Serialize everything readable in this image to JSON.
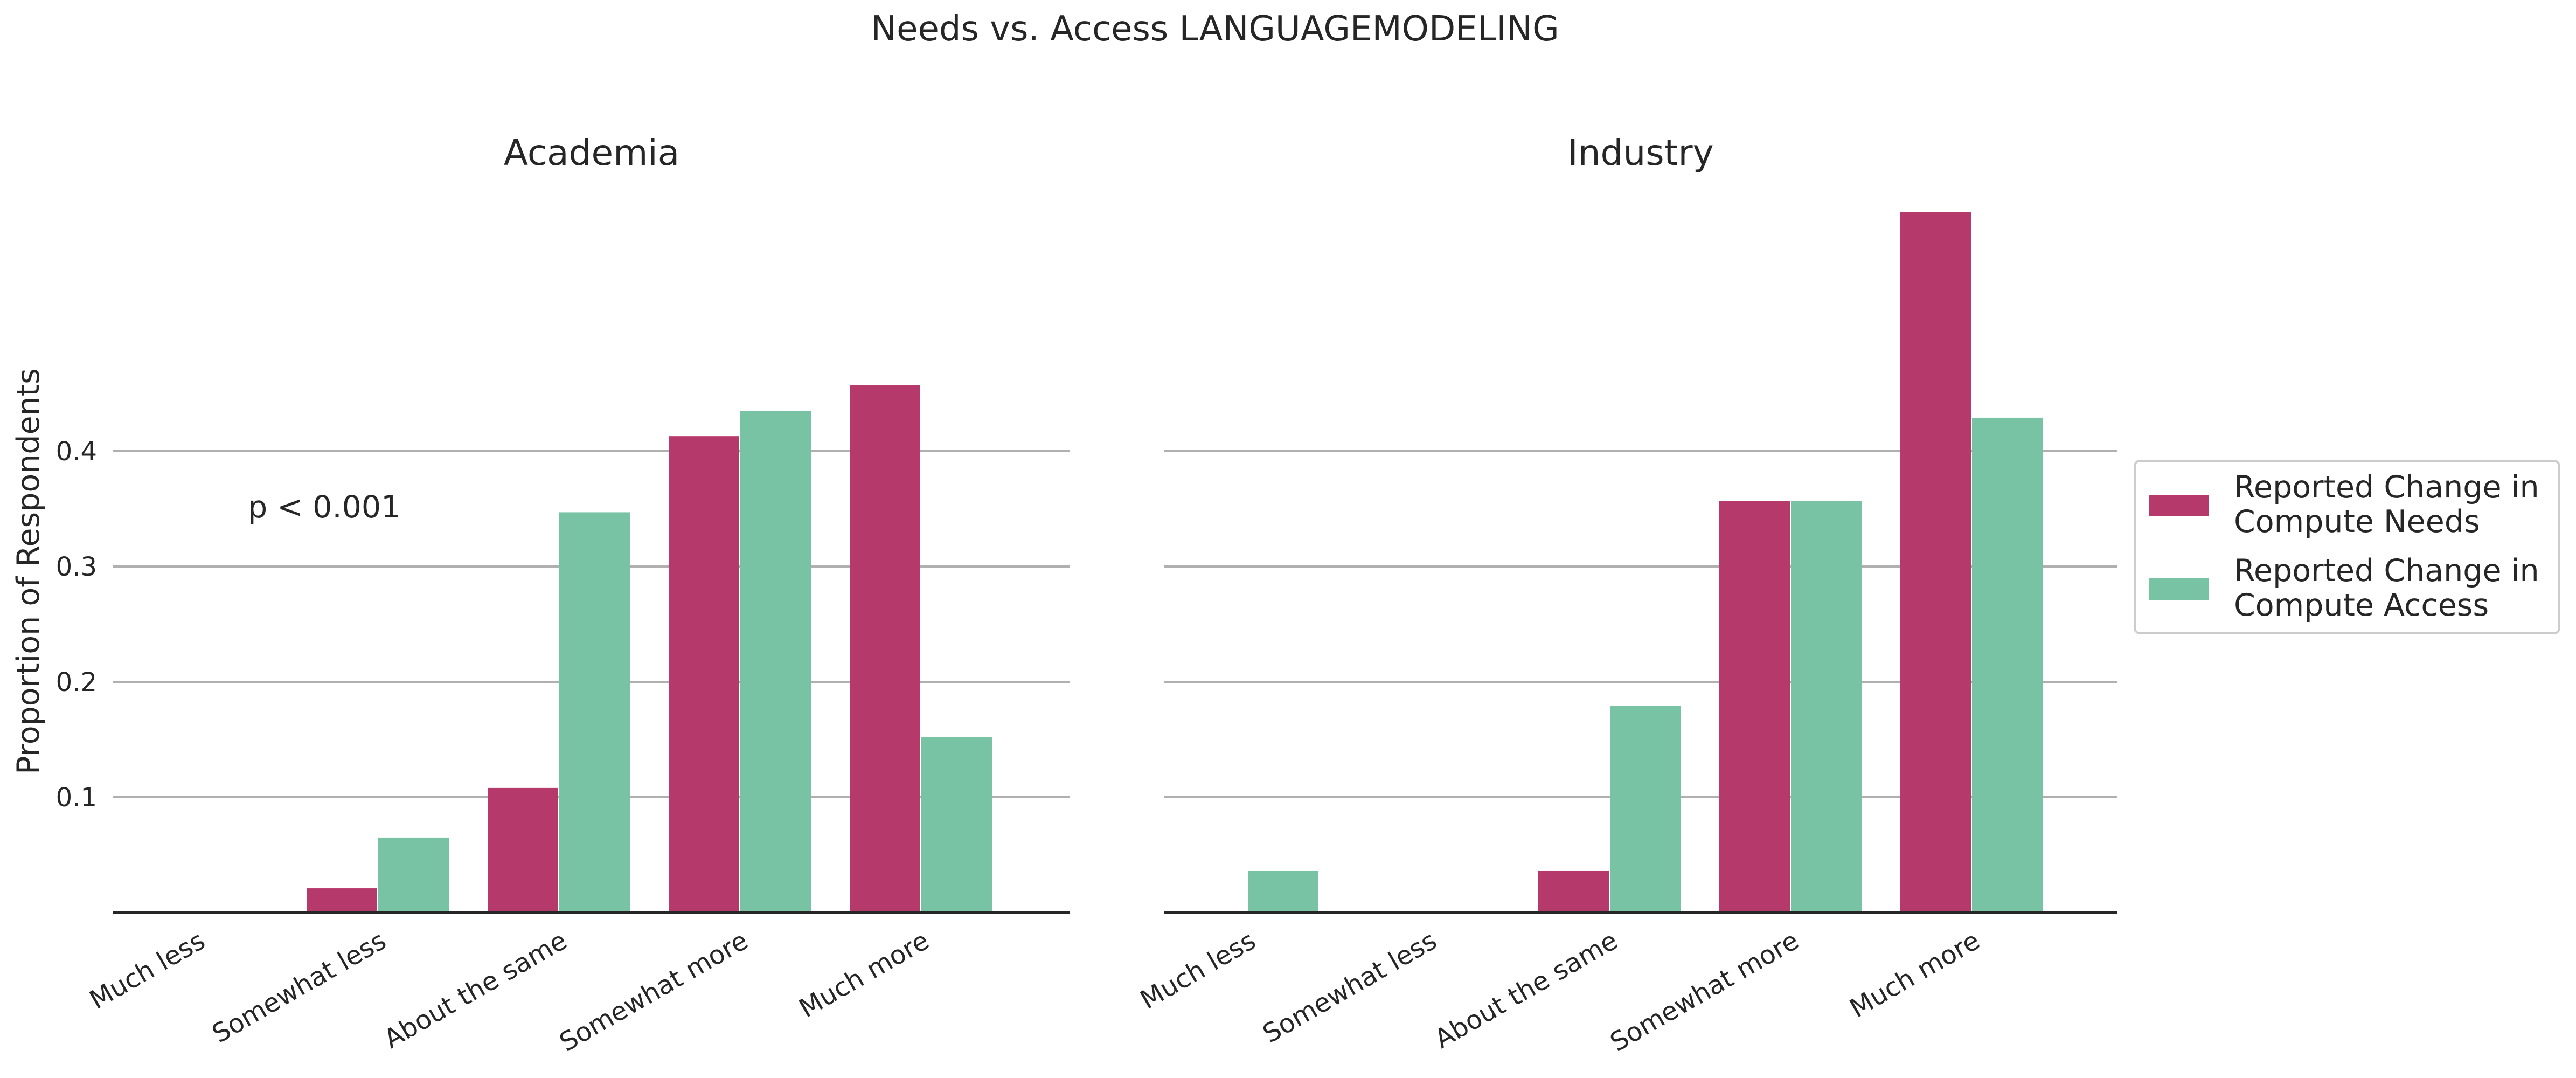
{
  "chart_data": {
    "type": "bar",
    "title": "Needs vs. Access LANGUAGEMODELING",
    "ylabel": "Proportion of Respondents",
    "xlabel": "",
    "ylim": [
      0,
      0.6
    ],
    "yticks": [
      0.1,
      0.2,
      0.3,
      0.4
    ],
    "grid": "horizontal",
    "legend_position": "right",
    "categories": [
      "Much less",
      "Somewhat less",
      "About the same",
      "Somewhat more",
      "Much more"
    ],
    "colors": {
      "Reported Change in Compute Needs": "#b5396b",
      "Reported Change in Compute Access": "#79c3a5"
    },
    "legend": [
      "Reported Change in Compute Needs",
      "Reported Change in Compute Access"
    ],
    "panels": [
      {
        "title": "Academia",
        "annotation": "p < 0.001",
        "series": [
          {
            "name": "Reported Change in Compute Needs",
            "values": [
              0.0,
              0.021,
              0.108,
              0.413,
              0.457
            ]
          },
          {
            "name": "Reported Change in Compute Access",
            "values": [
              0.0,
              0.065,
              0.347,
              0.435,
              0.152
            ]
          }
        ]
      },
      {
        "title": "Industry",
        "annotation": "",
        "series": [
          {
            "name": "Reported Change in Compute Needs",
            "values": [
              0.0,
              0.0,
              0.036,
              0.357,
              0.607
            ]
          },
          {
            "name": "Reported Change in Compute Access",
            "values": [
              0.036,
              0.0,
              0.179,
              0.357,
              0.429
            ]
          }
        ]
      }
    ]
  }
}
